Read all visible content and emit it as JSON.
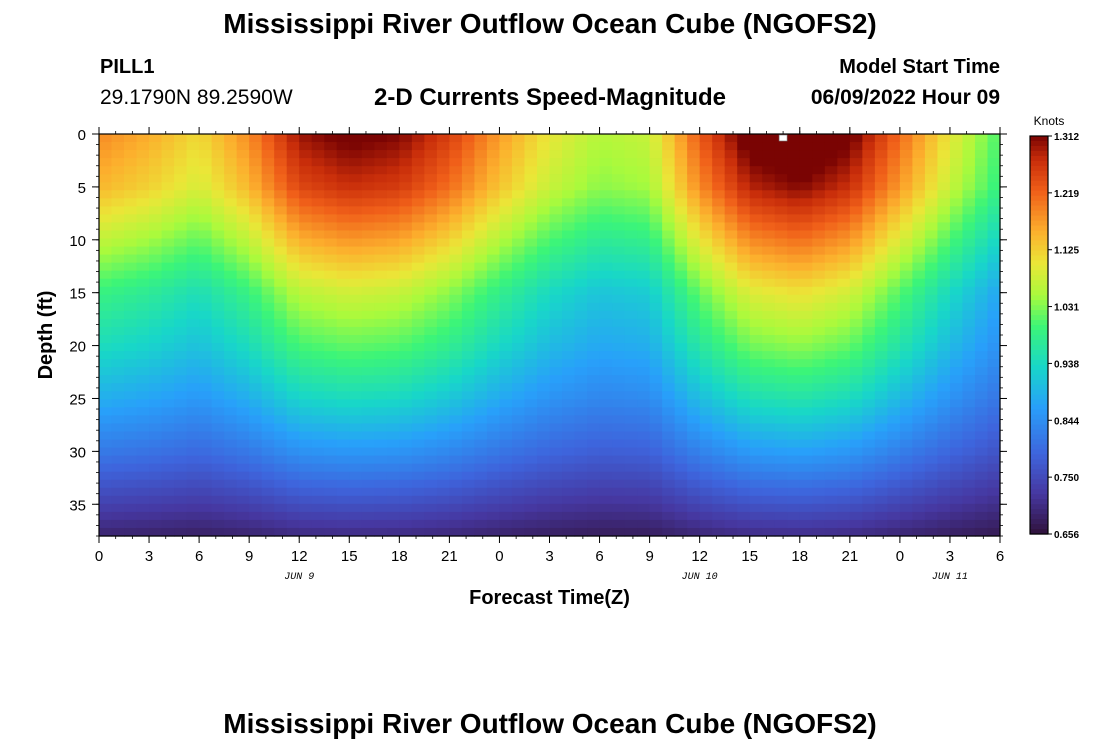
{
  "title": "Mississippi River Outflow Ocean Cube (NGOFS2)",
  "footer_title": "Mississippi River Outflow Ocean Cube (NGOFS2)",
  "station": {
    "id": "PILL1",
    "coords": "29.1790N  89.2590W"
  },
  "subtitle": "2-D Currents Speed-Magnitude",
  "model_start": {
    "label": "Model Start Time",
    "value": "06/09/2022 Hour 09"
  },
  "chart_data": {
    "type": "heatmap",
    "title": "2-D Currents Speed-Magnitude",
    "xlabel": "Forecast Time(Z)",
    "ylabel": "Depth (ft)",
    "x_unit": "forecast hour from 06/09/2022 00Z",
    "xlim": [
      0,
      54
    ],
    "ylim": [
      0,
      38
    ],
    "y_inverted": true,
    "x_ticks": [
      0,
      3,
      6,
      9,
      12,
      15,
      18,
      21,
      24,
      27,
      30,
      33,
      36,
      39,
      42,
      45,
      48,
      51,
      54
    ],
    "x_tick_labels": [
      "0",
      "3",
      "6",
      "9",
      "12",
      "15",
      "18",
      "21",
      "0",
      "3",
      "6",
      "9",
      "12",
      "15",
      "18",
      "21",
      "0",
      "3",
      "6"
    ],
    "y_ticks": [
      0,
      5,
      10,
      15,
      20,
      25,
      30,
      35
    ],
    "y_tick_labels": [
      "0",
      "5",
      "10",
      "15",
      "20",
      "25",
      "30",
      "35"
    ],
    "date_labels": [
      {
        "x": 12,
        "label": "JUN 9"
      },
      {
        "x": 36,
        "label": "JUN 10"
      },
      {
        "x": 51,
        "label": "JUN 11"
      }
    ],
    "colorbar": {
      "unit": "Knots",
      "min": 0.656,
      "max": 1.312,
      "ticks": [
        "1.312",
        "1.219",
        "1.125",
        "1.031",
        "0.938",
        "0.844",
        "0.750",
        "0.656"
      ]
    },
    "marker": {
      "x": 41,
      "y": 0
    },
    "grid": false,
    "series": [
      {
        "type": "surface_speed",
        "x": [
          0,
          3,
          6,
          9,
          12,
          15,
          18,
          21,
          24,
          27,
          30,
          33,
          36,
          39,
          42,
          45,
          48,
          51,
          54
        ],
        "values": [
          1.18,
          1.16,
          1.13,
          1.18,
          1.26,
          1.28,
          1.27,
          1.23,
          1.17,
          1.12,
          1.09,
          1.1,
          1.21,
          1.29,
          1.31,
          1.28,
          1.2,
          1.12,
          1.05
        ]
      },
      {
        "type": "depth_profile",
        "depth_ft": [
          0,
          5,
          10,
          15,
          20,
          25,
          30,
          35,
          38
        ],
        "mean_values": [
          1.2,
          1.16,
          1.08,
          1.0,
          0.95,
          0.89,
          0.82,
          0.74,
          0.69
        ]
      }
    ]
  }
}
